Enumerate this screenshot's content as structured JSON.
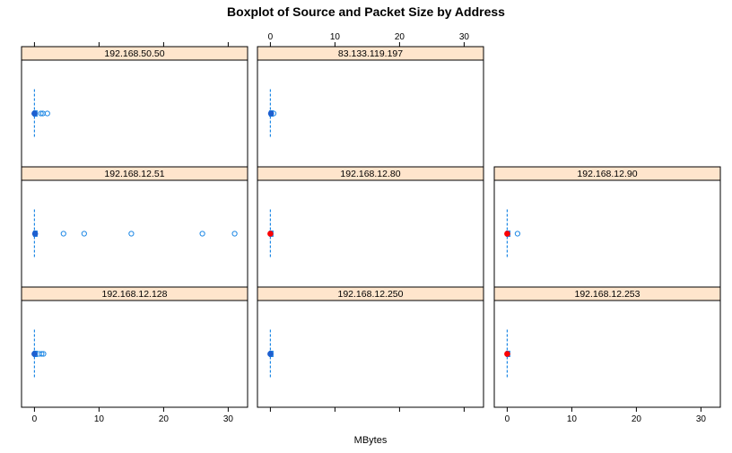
{
  "chart_data": {
    "type": "boxplot",
    "title": "Boxplot of Source and Packet Size by Address",
    "xlabel": "MBytes",
    "ylabel": "",
    "xlim": [
      -2,
      33
    ],
    "x_ticks": [
      0,
      10,
      20,
      30
    ],
    "grid": false,
    "strip_color": "#ffe5cc",
    "box_color": "#1e88e5",
    "outlier_color": "#1e88e5",
    "median_red_color": "#ff0000",
    "median_blue_color": "#1e5fcf",
    "panels": [
      {
        "label": "192.168.50.50",
        "row": 0,
        "col": 0,
        "whisker": [
          0,
          0.2
        ],
        "median": 0,
        "median_style": "blue",
        "outliers": [
          1.0,
          1.3,
          2.0
        ]
      },
      {
        "label": "83.133.119.197",
        "row": 0,
        "col": 1,
        "whisker": [
          0,
          0.3
        ],
        "median": 0.1,
        "median_style": "blue",
        "outliers": [
          0.5
        ]
      },
      {
        "label": "192.168.12.51",
        "row": 1,
        "col": 0,
        "whisker": [
          0,
          0.2
        ],
        "median": 0.1,
        "median_style": "blue",
        "outliers": [
          4.5,
          7.7,
          15.0,
          26.0,
          31.0
        ]
      },
      {
        "label": "192.168.12.80",
        "row": 1,
        "col": 1,
        "whisker": [
          0,
          0.1
        ],
        "median": 0,
        "median_style": "red",
        "outliers": []
      },
      {
        "label": "192.168.12.90",
        "row": 1,
        "col": 2,
        "whisker": [
          0,
          0.3
        ],
        "median": 0,
        "median_style": "red",
        "outliers": [
          1.6
        ]
      },
      {
        "label": "192.168.12.128",
        "row": 2,
        "col": 0,
        "whisker": [
          0,
          0.3
        ],
        "median": 0,
        "median_style": "blue",
        "outliers": [
          0.7,
          1.1,
          1.4
        ]
      },
      {
        "label": "192.168.12.250",
        "row": 2,
        "col": 1,
        "whisker": [
          0,
          0.1
        ],
        "median": 0,
        "median_style": "blue",
        "outliers": []
      },
      {
        "label": "192.168.12.253",
        "row": 2,
        "col": 2,
        "whisker": [
          0,
          0.1
        ],
        "median": 0,
        "median_style": "red",
        "outliers": []
      }
    ]
  }
}
